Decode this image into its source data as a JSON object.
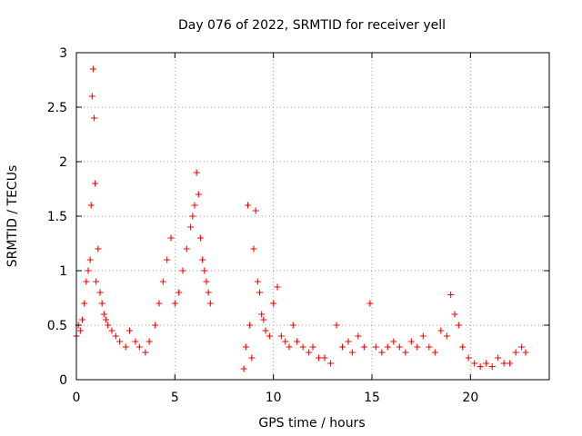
{
  "chart_data": {
    "type": "scatter",
    "title": "Day 076 of 2022, SRMTID for receiver yell",
    "xlabel": "GPS time / hours",
    "ylabel": "SRMTID / TECUs",
    "xlim": [
      0,
      24
    ],
    "ylim": [
      0,
      3
    ],
    "xticks": [
      0,
      5,
      10,
      15,
      20
    ],
    "yticks": [
      0,
      0.5,
      1,
      1.5,
      2,
      2.5,
      3
    ],
    "ytick_labels": [
      "0",
      "0.5",
      "1",
      "1.5",
      "2",
      "2.5",
      "3"
    ],
    "grid": true,
    "marker": "+",
    "series": [
      {
        "name": "yell",
        "color": "#ff0000",
        "x": [
          0.0,
          0.1,
          0.2,
          0.3,
          0.4,
          0.5,
          0.6,
          0.7,
          0.75,
          0.8,
          0.85,
          0.9,
          0.95,
          1.0,
          1.1,
          1.2,
          1.3,
          1.4,
          1.5,
          1.6,
          1.8,
          2.0,
          2.2,
          2.5,
          2.7,
          3.0,
          3.2,
          3.5,
          3.7,
          4.0,
          4.2,
          4.4,
          4.6,
          4.8,
          5.0,
          5.2,
          5.4,
          5.6,
          5.8,
          5.9,
          6.0,
          6.1,
          6.2,
          6.3,
          6.4,
          6.5,
          6.6,
          6.7,
          6.8,
          8.5,
          8.6,
          8.7,
          8.8,
          8.9,
          9.0,
          9.1,
          9.2,
          9.3,
          9.4,
          9.5,
          9.6,
          9.8,
          10.0,
          10.2,
          10.4,
          10.6,
          10.8,
          11.0,
          11.2,
          11.5,
          11.8,
          12.0,
          12.3,
          12.6,
          12.9,
          13.2,
          13.5,
          13.8,
          14.0,
          14.3,
          14.6,
          14.9,
          15.2,
          15.5,
          15.8,
          16.1,
          16.4,
          16.7,
          17.0,
          17.3,
          17.6,
          17.9,
          18.2,
          18.5,
          18.8,
          19.0,
          19.2,
          19.4,
          19.6,
          19.9,
          20.2,
          20.5,
          20.8,
          21.1,
          21.4,
          21.7,
          22.0,
          22.3,
          22.6,
          22.8
        ],
        "y": [
          0.4,
          0.5,
          0.45,
          0.55,
          0.7,
          0.9,
          1.0,
          1.1,
          1.6,
          2.6,
          2.85,
          2.4,
          1.8,
          0.9,
          1.2,
          0.8,
          0.7,
          0.6,
          0.55,
          0.5,
          0.45,
          0.4,
          0.35,
          0.3,
          0.45,
          0.35,
          0.3,
          0.25,
          0.35,
          0.5,
          0.7,
          0.9,
          1.1,
          1.3,
          0.7,
          0.8,
          1.0,
          1.2,
          1.4,
          1.5,
          1.6,
          1.9,
          1.7,
          1.3,
          1.1,
          1.0,
          0.9,
          0.8,
          0.7,
          0.1,
          0.3,
          1.6,
          0.5,
          0.2,
          1.2,
          1.55,
          0.9,
          0.8,
          0.6,
          0.55,
          0.45,
          0.4,
          0.7,
          0.85,
          0.4,
          0.35,
          0.3,
          0.5,
          0.35,
          0.3,
          0.25,
          0.3,
          0.2,
          0.2,
          0.15,
          0.5,
          0.3,
          0.35,
          0.25,
          0.4,
          0.3,
          0.7,
          0.3,
          0.25,
          0.3,
          0.35,
          0.3,
          0.25,
          0.35,
          0.3,
          0.4,
          0.3,
          0.25,
          0.45,
          0.4,
          0.78,
          0.6,
          0.5,
          0.3,
          0.2,
          0.15,
          0.12,
          0.15,
          0.12,
          0.2,
          0.15,
          0.15,
          0.25,
          0.3,
          0.25
        ]
      }
    ]
  }
}
